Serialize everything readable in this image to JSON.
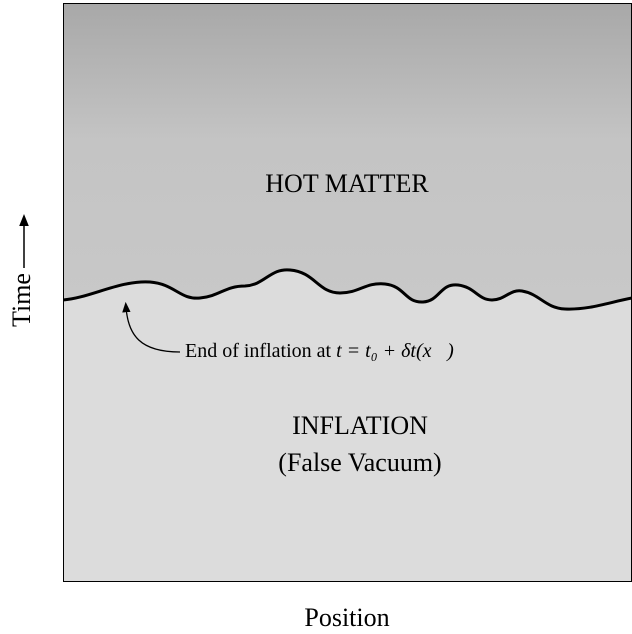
{
  "regions": {
    "upper": "HOT MATTER",
    "lower": [
      "INFLATION",
      "(False Vacuum)"
    ]
  },
  "annotation": {
    "text": "End of inflation at",
    "math": "t = t₀ + δt(x⃗)"
  },
  "axes": {
    "y": "Time",
    "x": "Position"
  }
}
